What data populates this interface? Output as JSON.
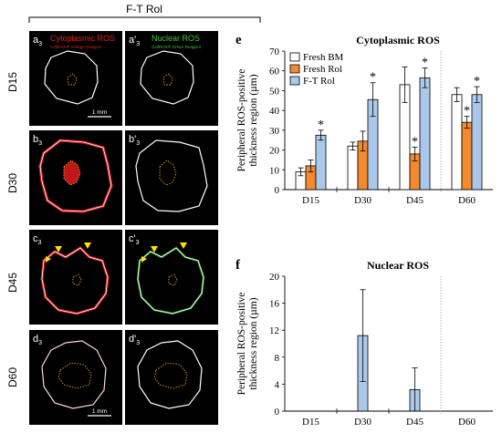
{
  "left_panel": {
    "header": "F-T Rol",
    "row_labels": [
      "D15",
      "D30",
      "D45",
      "D60"
    ],
    "panel_labels": [
      [
        "a",
        "a'"
      ],
      [
        "b",
        "b'"
      ],
      [
        "c",
        "c'"
      ],
      [
        "d",
        "d'"
      ]
    ],
    "panel_subscript": "3",
    "stain_titles": [
      "Cytoplasmic ROS",
      "Nuclear ROS"
    ],
    "stain_subtitles": [
      "CellROX® Orange Reagent",
      "CellROX® Green Reagent"
    ],
    "scale_bar": "1 mm",
    "colors": {
      "cytoplasmic": "#e02020",
      "nuclear": "#3cc83c",
      "outline": "#ffffff",
      "core": "#e8a020",
      "marker": "#ffe000"
    }
  },
  "chart_data": [
    {
      "panel": "e",
      "type": "bar",
      "title": "Cytoplasmic ROS",
      "ylabel": "Peripheral ROS-positive thickness region (µm)",
      "ylim": [
        0,
        70
      ],
      "yticks": [
        "0",
        "10",
        "20",
        "30",
        "40",
        "50",
        "60",
        "70"
      ],
      "categories": [
        "D15",
        "D30",
        "D45",
        "D60"
      ],
      "series": [
        {
          "name": "Fresh BM",
          "color": "#ffffff",
          "values": [
            9,
            22,
            53,
            48
          ],
          "errors": [
            2,
            2,
            9,
            3.5
          ]
        },
        {
          "name": "Fresh Rol",
          "color": "#f28a30",
          "values": [
            12,
            24.5,
            18,
            34
          ],
          "errors": [
            3,
            5,
            3.5,
            3
          ]
        },
        {
          "name": "F-T Rol",
          "color": "#a9c8ea",
          "values": [
            27.5,
            45.5,
            56.5,
            48
          ],
          "errors": [
            2.5,
            8.5,
            5,
            4
          ]
        }
      ],
      "significance": [
        {
          "category": "D15",
          "series": "F-T Rol",
          "label": "*"
        },
        {
          "category": "D30",
          "series": "F-T Rol",
          "label": "*"
        },
        {
          "category": "D45",
          "series": "Fresh Rol",
          "label": "*"
        },
        {
          "category": "D45",
          "series": "F-T Rol",
          "label": "*"
        },
        {
          "category": "D60",
          "series": "Fresh Rol",
          "label": "*"
        },
        {
          "category": "D60",
          "series": "F-T Rol",
          "label": "*"
        }
      ]
    },
    {
      "panel": "f",
      "type": "bar",
      "title": "Nuclear ROS",
      "ylabel": "Peripheral ROS-positive thickness region (µm)",
      "ylim": [
        0,
        20
      ],
      "yticks": [
        "0",
        "4",
        "8",
        "12",
        "16",
        "20"
      ],
      "categories": [
        "D15",
        "D30",
        "D45",
        "D60"
      ],
      "series": [
        {
          "name": "F-T Rol",
          "color": "#a9c8ea",
          "values": [
            0,
            11.2,
            3.2,
            0
          ],
          "errors": [
            0,
            6.8,
            3.2,
            0
          ]
        }
      ]
    }
  ]
}
